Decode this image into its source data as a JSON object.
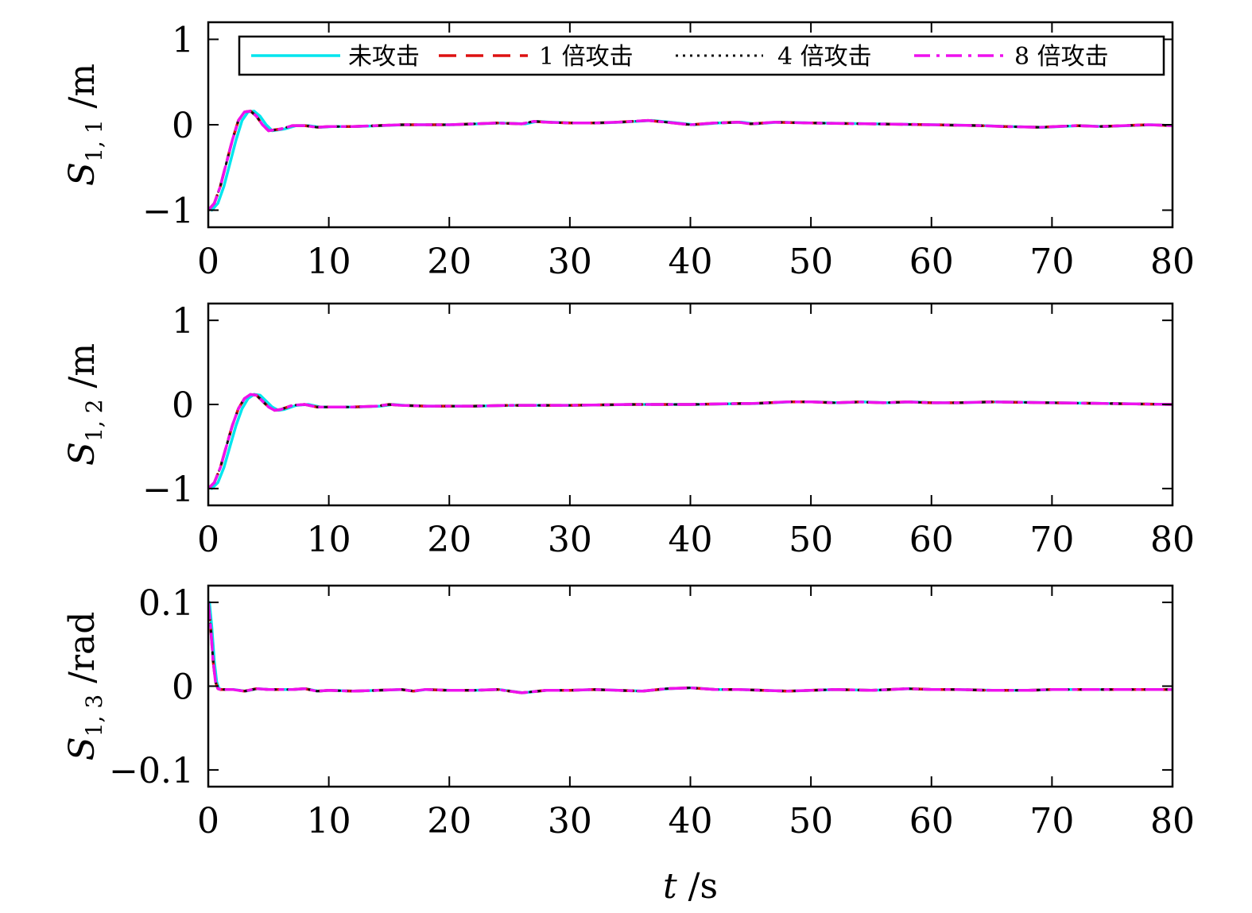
{
  "chart_data": [
    {
      "type": "line",
      "ylabel": {
        "sym": "S",
        "sub": "1, 1",
        "unit": " /m"
      },
      "xlim": [
        0,
        80
      ],
      "ylim": [
        -1.2,
        1.2
      ],
      "xticks": [
        0,
        10,
        20,
        30,
        40,
        50,
        60,
        70,
        80
      ],
      "yticks": [
        -1,
        0,
        1
      ],
      "ytick_labels": [
        "−1",
        "0",
        "1"
      ],
      "legend": {
        "position": "top",
        "entries": [
          "未攻击",
          "1 倍攻击",
          "4 倍攻击",
          "8 倍攻击"
        ]
      },
      "series": [
        {
          "name": "未攻击",
          "color": "#00e5ee",
          "style": "solid",
          "time_shift": 0.3,
          "x": [
            0,
            0.5,
            1,
            1.5,
            2,
            2.5,
            3,
            3.5,
            4,
            4.5,
            5,
            6,
            7,
            8,
            9,
            10,
            12,
            14,
            16,
            18,
            20,
            22,
            24,
            26,
            27,
            28,
            30,
            32,
            34,
            36.5,
            38,
            40,
            42,
            44,
            45,
            47,
            50,
            55,
            60,
            64,
            66,
            69,
            72,
            74,
            76,
            78,
            80
          ],
          "y": [
            -1.0,
            -0.92,
            -0.72,
            -0.45,
            -0.18,
            0.05,
            0.15,
            0.16,
            0.1,
            0.0,
            -0.07,
            -0.05,
            -0.01,
            -0.01,
            -0.03,
            -0.02,
            -0.02,
            -0.01,
            0.0,
            0.0,
            0.0,
            0.01,
            0.02,
            0.01,
            0.04,
            0.03,
            0.02,
            0.02,
            0.03,
            0.05,
            0.03,
            0.0,
            0.02,
            0.03,
            0.01,
            0.03,
            0.02,
            0.01,
            0.0,
            -0.01,
            -0.02,
            -0.03,
            -0.01,
            -0.02,
            -0.01,
            0.0,
            -0.01
          ]
        },
        {
          "name": "1 倍攻击",
          "color": "#dd1111",
          "style": "dashed",
          "time_shift": 0.0
        },
        {
          "name": "4 倍攻击",
          "color": "#111111",
          "style": "dotted",
          "time_shift": 0.0
        },
        {
          "name": "8 倍攻击",
          "color": "#ee11ee",
          "style": "dashdot",
          "time_shift": 0.0
        }
      ]
    },
    {
      "type": "line",
      "ylabel": {
        "sym": "S",
        "sub": "1, 2",
        "unit": " /m"
      },
      "xlim": [
        0,
        80
      ],
      "ylim": [
        -1.2,
        1.2
      ],
      "xticks": [
        0,
        10,
        20,
        30,
        40,
        50,
        60,
        70,
        80
      ],
      "yticks": [
        -1,
        0,
        1
      ],
      "ytick_labels": [
        "−1",
        "0",
        "1"
      ],
      "series": [
        {
          "name": "未攻击",
          "color": "#00e5ee",
          "style": "solid",
          "time_shift": 0.3,
          "x": [
            0,
            0.5,
            1,
            1.5,
            2,
            2.5,
            3,
            3.5,
            4,
            4.5,
            5,
            5.5,
            6,
            7,
            8,
            9,
            10,
            12,
            14,
            15,
            16,
            18,
            20,
            22,
            25,
            27,
            30,
            35,
            40,
            44,
            45,
            48,
            50,
            52,
            54,
            56,
            58,
            60,
            62,
            65,
            70,
            75,
            80
          ],
          "y": [
            -1.0,
            -0.93,
            -0.75,
            -0.5,
            -0.25,
            -0.05,
            0.07,
            0.12,
            0.11,
            0.04,
            -0.03,
            -0.07,
            -0.06,
            -0.01,
            0.0,
            -0.03,
            -0.03,
            -0.03,
            -0.02,
            0.0,
            -0.01,
            -0.02,
            -0.02,
            -0.02,
            -0.01,
            -0.01,
            -0.01,
            0.0,
            0.0,
            0.01,
            0.01,
            0.03,
            0.03,
            0.02,
            0.03,
            0.02,
            0.03,
            0.02,
            0.02,
            0.03,
            0.02,
            0.01,
            0.0
          ]
        },
        {
          "name": "1 倍攻击",
          "color": "#dd1111",
          "style": "dashed",
          "time_shift": 0.0
        },
        {
          "name": "4 倍攻击",
          "color": "#111111",
          "style": "dotted",
          "time_shift": 0.0
        },
        {
          "name": "8 倍攻击",
          "color": "#ee11ee",
          "style": "dashdot",
          "time_shift": 0.0
        }
      ]
    },
    {
      "type": "line",
      "ylabel": {
        "sym": "S",
        "sub": "1, 3",
        "unit": " /rad"
      },
      "xlabel": {
        "sym": "t",
        "unit": " /s"
      },
      "xlim": [
        0,
        80
      ],
      "ylim": [
        -0.12,
        0.12
      ],
      "xticks": [
        0,
        10,
        20,
        30,
        40,
        50,
        60,
        70,
        80
      ],
      "yticks": [
        -0.1,
        0,
        0.1
      ],
      "ytick_labels": [
        "−0.1",
        "0",
        "0.1"
      ],
      "series": [
        {
          "name": "未攻击",
          "color": "#00e5ee",
          "style": "solid",
          "time_shift": 0.1,
          "x": [
            0,
            0.2,
            0.4,
            0.6,
            0.8,
            1,
            1.5,
            2,
            3,
            4,
            5,
            6,
            7,
            8,
            9,
            10,
            12,
            14,
            16,
            17,
            18,
            20,
            22,
            24,
            26,
            28,
            30,
            32,
            34,
            36,
            38,
            40,
            42,
            44,
            46,
            48,
            50,
            52,
            55,
            58,
            60,
            62,
            65,
            68,
            70,
            72,
            75,
            78,
            80
          ],
          "y": [
            0.1,
            0.07,
            0.03,
            0.005,
            -0.003,
            -0.004,
            -0.004,
            -0.004,
            -0.006,
            -0.003,
            -0.004,
            -0.004,
            -0.004,
            -0.003,
            -0.006,
            -0.005,
            -0.006,
            -0.005,
            -0.004,
            -0.006,
            -0.004,
            -0.005,
            -0.005,
            -0.004,
            -0.008,
            -0.005,
            -0.005,
            -0.004,
            -0.005,
            -0.006,
            -0.003,
            -0.002,
            -0.004,
            -0.004,
            -0.005,
            -0.006,
            -0.005,
            -0.004,
            -0.005,
            -0.003,
            -0.004,
            -0.004,
            -0.005,
            -0.005,
            -0.004,
            -0.004,
            -0.004,
            -0.004,
            -0.004
          ]
        },
        {
          "name": "1 倍攻击",
          "color": "#dd1111",
          "style": "dashed",
          "time_shift": 0.0
        },
        {
          "name": "4 倍攻击",
          "color": "#111111",
          "style": "dotted",
          "time_shift": 0.0
        },
        {
          "name": "8 倍攻击",
          "color": "#ee11ee",
          "style": "dashdot",
          "time_shift": 0.0
        }
      ]
    }
  ]
}
